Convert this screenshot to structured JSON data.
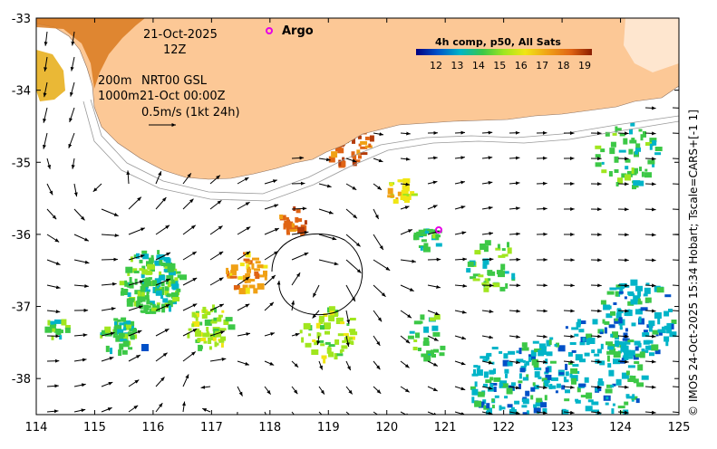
{
  "map": {
    "date": "21-Oct-2025",
    "time": "12Z",
    "depth_top": "200m",
    "depth_bottom": "1000m",
    "product": "NRT00 GSL",
    "product_time": "21-Oct 00:00Z",
    "scale_label": "0.5m/s (1kt 24h)",
    "argo_label": "Argo",
    "colorbar_title": "4h comp, p50, All Sats",
    "colorbar_ticks": [
      "12",
      "13",
      "14",
      "15",
      "16",
      "17",
      "18",
      "19"
    ],
    "credit": "© IMOS 24-Oct-2025 15:34 Hobart; Tscale=CARS+[-1 1]",
    "lon_ticks": [
      "114",
      "115",
      "116",
      "117",
      "118",
      "119",
      "120",
      "121",
      "122",
      "123",
      "124",
      "125"
    ],
    "lat_ticks": [
      "-33",
      "-34",
      "-35",
      "-36",
      "-37",
      "-38"
    ],
    "lon_range": [
      114,
      125
    ],
    "lat_range": [
      -38.5,
      -33
    ],
    "colors": {
      "land": "#fcc896",
      "frame": "#000000",
      "argo": "#e600e6",
      "sst_scale": [
        "#00007f",
        "#0050c8",
        "#00b4c8",
        "#3cc846",
        "#a0e61e",
        "#f0e614",
        "#f0a014",
        "#e06414",
        "#b43c0a",
        "#8b1e00"
      ]
    }
  }
}
